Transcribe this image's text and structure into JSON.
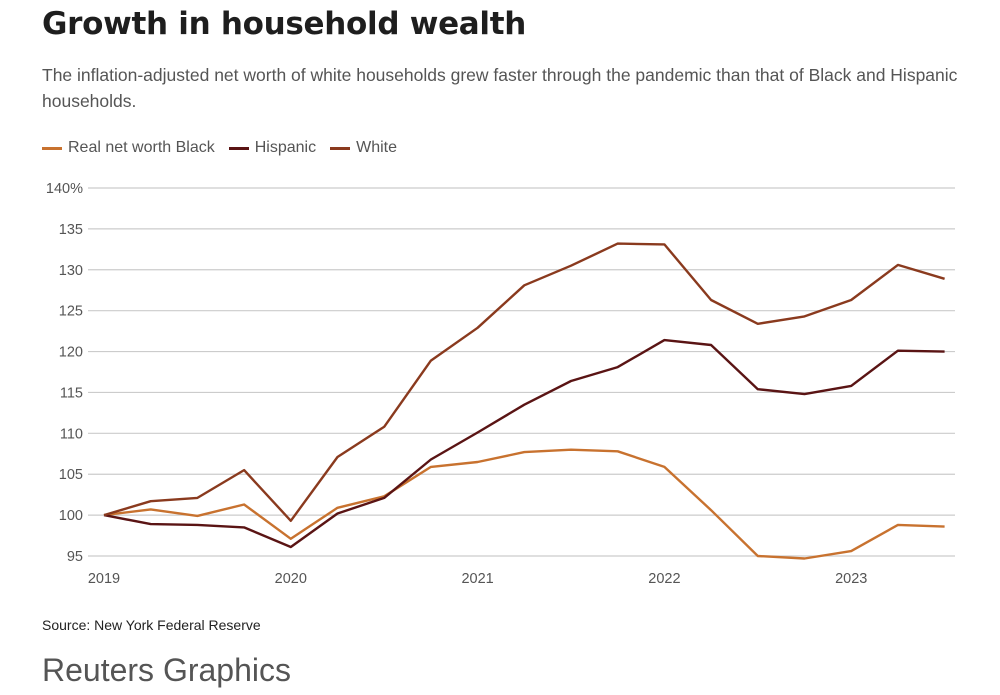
{
  "header": {
    "title": "Growth in household wealth",
    "subtitle": "The inflation-adjusted net worth of white households grew faster through the pandemic than that of Black and Hispanic households."
  },
  "footer": {
    "source": "Source: New York Federal Reserve",
    "brand": "Reuters Graphics"
  },
  "chart_data": {
    "type": "line",
    "title": "Growth in household wealth",
    "xlabel": "",
    "ylabel": "",
    "x": [
      "2019Q1",
      "2019Q2",
      "2019Q3",
      "2019Q4",
      "2020Q1",
      "2020Q2",
      "2020Q3",
      "2020Q4",
      "2021Q1",
      "2021Q2",
      "2021Q3",
      "2021Q4",
      "2022Q1",
      "2022Q2",
      "2022Q3",
      "2022Q4",
      "2023Q1",
      "2023Q2",
      "2023Q3"
    ],
    "x_tick_labels": [
      "2019",
      "2020",
      "2021",
      "2022",
      "2023"
    ],
    "y_tick_labels": [
      "140%",
      "135",
      "130",
      "125",
      "120",
      "115",
      "110",
      "105",
      "100",
      "95"
    ],
    "y_ticks": [
      140,
      135,
      130,
      125,
      120,
      115,
      110,
      105,
      100,
      95
    ],
    "ylim": [
      95,
      140
    ],
    "grid": true,
    "legend_position": "top-left",
    "series": [
      {
        "name": "Real net worth Black",
        "color": "#c8722f",
        "values": [
          100,
          100.7,
          99.9,
          101.3,
          97.1,
          100.9,
          102.3,
          105.9,
          106.5,
          107.7,
          108.0,
          107.8,
          105.9,
          100.6,
          95.0,
          94.7,
          95.6,
          98.8,
          98.6
        ]
      },
      {
        "name": "Hispanic",
        "color": "#5a1414",
        "values": [
          100,
          98.9,
          98.8,
          98.5,
          96.1,
          100.2,
          102.1,
          106.8,
          110.1,
          113.5,
          116.4,
          118.1,
          121.4,
          120.8,
          115.4,
          114.8,
          115.8,
          120.1,
          120.0
        ]
      },
      {
        "name": "White",
        "color": "#8a3a1e",
        "values": [
          100,
          101.7,
          102.1,
          105.5,
          99.3,
          107.1,
          110.8,
          118.9,
          122.9,
          128.1,
          130.5,
          133.2,
          133.1,
          126.3,
          123.4,
          124.3,
          126.3,
          130.6,
          128.9
        ]
      }
    ]
  }
}
